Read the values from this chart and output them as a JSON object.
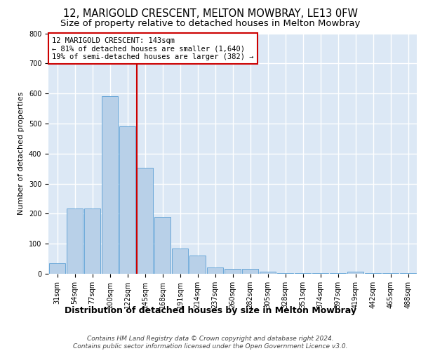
{
  "title1": "12, MARIGOLD CRESCENT, MELTON MOWBRAY, LE13 0FW",
  "title2": "Size of property relative to detached houses in Melton Mowbray",
  "xlabel": "Distribution of detached houses by size in Melton Mowbray",
  "ylabel": "Number of detached properties",
  "categories": [
    "31sqm",
    "54sqm",
    "77sqm",
    "100sqm",
    "122sqm",
    "145sqm",
    "168sqm",
    "191sqm",
    "214sqm",
    "237sqm",
    "260sqm",
    "282sqm",
    "305sqm",
    "328sqm",
    "351sqm",
    "374sqm",
    "397sqm",
    "419sqm",
    "442sqm",
    "465sqm",
    "488sqm"
  ],
  "values": [
    35,
    218,
    218,
    590,
    490,
    352,
    190,
    85,
    60,
    20,
    17,
    17,
    8,
    2,
    2,
    2,
    2,
    8,
    2,
    2,
    2
  ],
  "bar_color": "#b8d0e8",
  "bar_edgecolor": "#5a9fd4",
  "highlight_index": 5,
  "vline_color": "#cc0000",
  "annotation_box_text": "12 MARIGOLD CRESCENT: 143sqm\n← 81% of detached houses are smaller (1,640)\n19% of semi-detached houses are larger (382) →",
  "annotation_box_color": "#cc0000",
  "ylim": [
    0,
    800
  ],
  "yticks": [
    0,
    100,
    200,
    300,
    400,
    500,
    600,
    700,
    800
  ],
  "background_color": "#dce8f5",
  "grid_color": "#ffffff",
  "footer_line1": "Contains HM Land Registry data © Crown copyright and database right 2024.",
  "footer_line2": "Contains public sector information licensed under the Open Government Licence v3.0.",
  "title1_fontsize": 10.5,
  "title2_fontsize": 9.5,
  "xlabel_fontsize": 9,
  "ylabel_fontsize": 8,
  "tick_fontsize": 7,
  "footer_fontsize": 6.5,
  "annotation_fontsize": 7.5
}
